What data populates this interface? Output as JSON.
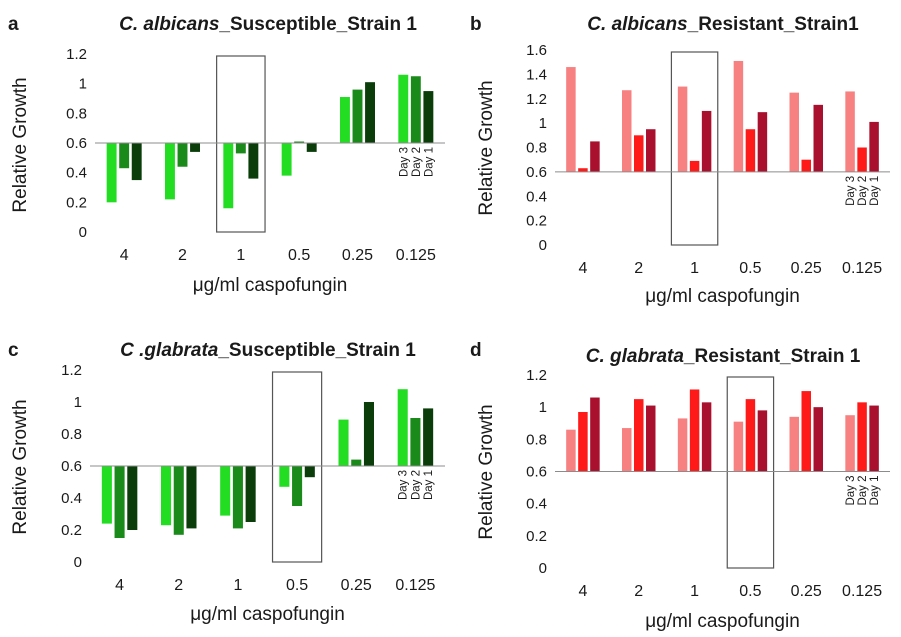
{
  "chart_data": [
    {
      "panel": "a",
      "type": "bar",
      "title_italic": "C. albicans",
      "title_rest": "_Susceptible_Strain 1",
      "xlabel": "μg/ml caspofungin",
      "ylabel": "Relative Growth",
      "categories": [
        "4",
        "2",
        "1",
        "0.5",
        "0.25",
        "0.125"
      ],
      "ylim": [
        0,
        1.2
      ],
      "yticks": [
        "0",
        "0.2",
        "0.4",
        "0.6",
        "0.8",
        "1",
        "1.2"
      ],
      "baseline": 0.6,
      "highlight_category": "1",
      "day_labels": [
        "Day 3",
        "Day 2",
        "Day 1"
      ],
      "series": [
        {
          "name": "Day 3",
          "color": "#22dd22",
          "values": [
            0.2,
            0.22,
            0.16,
            0.38,
            0.91,
            1.06
          ]
        },
        {
          "name": "Day 2",
          "color": "#1a8a1a",
          "values": [
            0.43,
            0.44,
            0.53,
            0.61,
            0.96,
            1.05
          ]
        },
        {
          "name": "Day 1",
          "color": "#0a3d0a",
          "values": [
            0.35,
            0.54,
            0.36,
            0.54,
            1.01,
            0.95
          ]
        }
      ]
    },
    {
      "panel": "b",
      "type": "bar",
      "title_italic": "C. albicans",
      "title_rest": "_Resistant_Strain1",
      "xlabel": "μg/ml caspofungin",
      "ylabel": "Relative Growth",
      "categories": [
        "4",
        "2",
        "1",
        "0.5",
        "0.25",
        "0.125"
      ],
      "ylim": [
        0,
        1.6
      ],
      "yticks": [
        "0",
        "0.2",
        "0.4",
        "0.6",
        "0.8",
        "1",
        "1.2",
        "1.4",
        "1.6"
      ],
      "baseline": 0.6,
      "highlight_category": "1",
      "day_labels": [
        "Day 3",
        "Day 2",
        "Day 1"
      ],
      "series": [
        {
          "name": "Day 3",
          "color": "#f78080",
          "values": [
            1.46,
            1.27,
            1.3,
            1.51,
            1.25,
            1.26
          ]
        },
        {
          "name": "Day 2",
          "color": "#ff1a1a",
          "values": [
            0.63,
            0.9,
            0.69,
            0.95,
            0.7,
            0.8
          ]
        },
        {
          "name": "Day 1",
          "color": "#a8102e",
          "values": [
            0.85,
            0.95,
            1.1,
            1.09,
            1.15,
            1.01
          ]
        }
      ]
    },
    {
      "panel": "c",
      "type": "bar",
      "title_italic": "C .glabrata",
      "title_rest": "_Susceptible_Strain 1",
      "xlabel": "μg/ml caspofungin",
      "ylabel": "Relative Growth",
      "categories": [
        "4",
        "2",
        "1",
        "0.5",
        "0.25",
        "0.125"
      ],
      "ylim": [
        0,
        1.2
      ],
      "yticks": [
        "0",
        "0.2",
        "0.4",
        "0.6",
        "0.8",
        "1",
        "1.2"
      ],
      "baseline": 0.6,
      "highlight_category": "0.5",
      "day_labels": [
        "Day 3",
        "Day 2",
        "Day 1"
      ],
      "series": [
        {
          "name": "Day 3",
          "color": "#22dd22",
          "values": [
            0.24,
            0.23,
            0.29,
            0.47,
            0.89,
            1.08
          ]
        },
        {
          "name": "Day 2",
          "color": "#1a8a1a",
          "values": [
            0.15,
            0.17,
            0.21,
            0.35,
            0.64,
            0.9
          ]
        },
        {
          "name": "Day 1",
          "color": "#0a3d0a",
          "values": [
            0.2,
            0.21,
            0.25,
            0.53,
            1.0,
            0.96
          ]
        }
      ]
    },
    {
      "panel": "d",
      "type": "bar",
      "title_italic": "C. glabrata",
      "title_rest": "_Resistant_Strain 1",
      "xlabel": "μg/ml caspofungin",
      "ylabel": "Relative Growth",
      "categories": [
        "4",
        "2",
        "1",
        "0.5",
        "0.25",
        "0.125"
      ],
      "ylim": [
        0,
        1.2
      ],
      "yticks": [
        "0",
        "0.2",
        "0.4",
        "0.6",
        "0.8",
        "1",
        "1.2"
      ],
      "baseline": 0.6,
      "highlight_category": "0.5",
      "day_labels": [
        "Day 3",
        "Day 2",
        "Day 1"
      ],
      "series": [
        {
          "name": "Day 3",
          "color": "#f78080",
          "values": [
            0.86,
            0.87,
            0.93,
            0.91,
            0.94,
            0.95
          ]
        },
        {
          "name": "Day 2",
          "color": "#ff1a1a",
          "values": [
            0.97,
            1.05,
            1.11,
            1.05,
            1.1,
            1.03
          ]
        },
        {
          "name": "Day 1",
          "color": "#a8102e",
          "values": [
            1.06,
            1.01,
            1.03,
            0.98,
            1.0,
            1.01
          ]
        }
      ]
    }
  ]
}
